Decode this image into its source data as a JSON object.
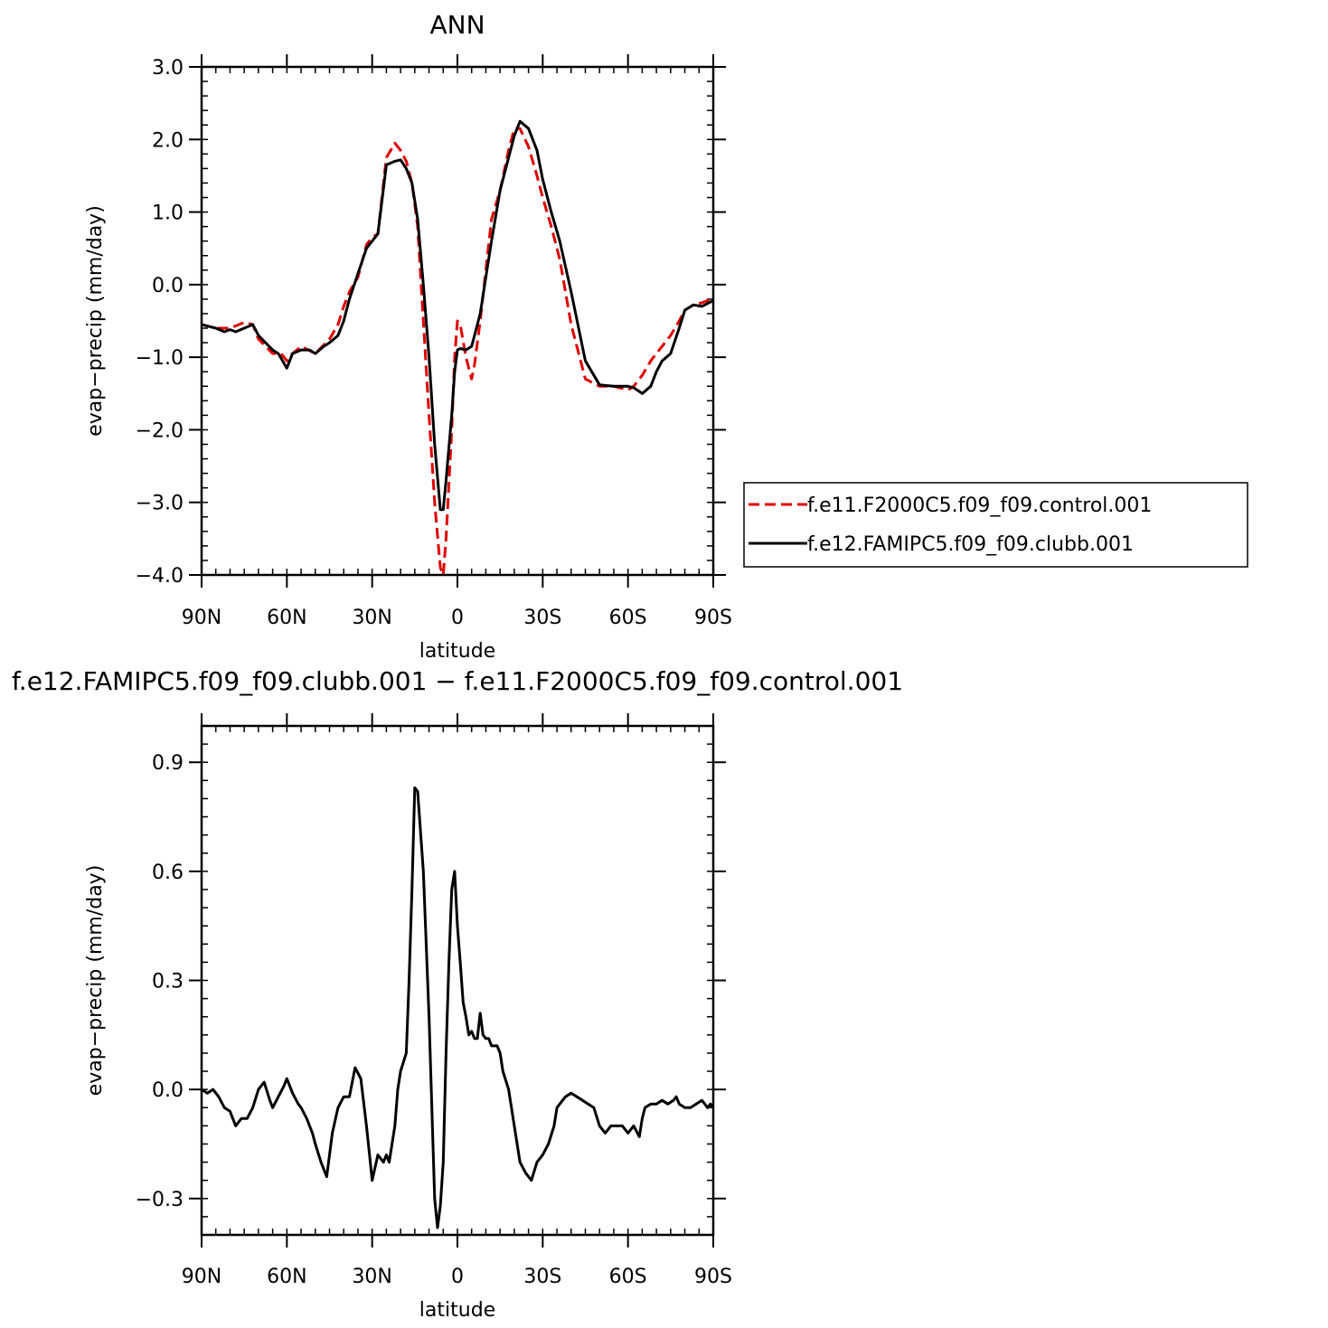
{
  "chart_data": [
    {
      "type": "line",
      "title": "ANN",
      "xlabel": "latitude",
      "ylabel": "evap−precip (mm/day)",
      "xlim": [
        90,
        -90
      ],
      "ylim": [
        -4.0,
        3.0
      ],
      "x_ticks": [
        90,
        60,
        30,
        0,
        -30,
        -60,
        -90
      ],
      "x_tick_labels": [
        "90N",
        "60N",
        "30N",
        "0",
        "30S",
        "60S",
        "90S"
      ],
      "y_ticks": [
        3.0,
        2.0,
        1.0,
        0.0,
        -1.0,
        -2.0,
        -3.0,
        -4.0
      ],
      "y_tick_labels": [
        "3.0",
        "2.0",
        "1.0",
        "0.0",
        "−1.0",
        "−2.0",
        "−3.0",
        "−4.0"
      ],
      "legend_position": "right",
      "series": [
        {
          "name": "f.e11.F2000C5.f09_f09.control.001",
          "color": "#e00000",
          "dash": "dashed",
          "x": [
            90,
            85,
            80,
            75,
            72,
            70,
            65,
            62,
            60,
            58,
            55,
            50,
            45,
            42,
            40,
            38,
            35,
            32,
            30,
            28,
            25,
            22,
            20,
            18,
            16,
            14,
            12,
            10,
            8,
            6,
            5,
            4,
            2,
            1,
            0,
            -1,
            -3,
            -5,
            -6,
            -8,
            -10,
            -12,
            -15,
            -18,
            -20,
            -22,
            -25,
            -28,
            -30,
            -33,
            -36,
            -40,
            -45,
            -50,
            -55,
            -60,
            -62,
            -65,
            -68,
            -70,
            -72,
            -75,
            -78,
            -80,
            -83,
            -86,
            -88,
            -90
          ],
          "y": [
            -0.55,
            -0.6,
            -0.6,
            -0.52,
            -0.55,
            -0.75,
            -0.95,
            -0.95,
            -1.05,
            -0.95,
            -0.85,
            -0.95,
            -0.75,
            -0.55,
            -0.3,
            -0.1,
            0.1,
            0.55,
            0.65,
            0.7,
            1.75,
            1.95,
            1.85,
            1.7,
            1.4,
            0.8,
            -0.5,
            -1.8,
            -3.0,
            -3.9,
            -4.0,
            -3.5,
            -2.0,
            -1.0,
            -0.5,
            -0.55,
            -1.0,
            -1.3,
            -1.1,
            -0.5,
            0.2,
            0.9,
            1.3,
            1.85,
            2.15,
            2.15,
            1.9,
            1.5,
            1.2,
            0.8,
            0.35,
            -0.55,
            -1.3,
            -1.4,
            -1.4,
            -1.45,
            -1.4,
            -1.25,
            -1.05,
            -0.95,
            -0.85,
            -0.7,
            -0.5,
            -0.35,
            -0.28,
            -0.25,
            -0.22,
            -0.2
          ]
        },
        {
          "name": "f.e12.FAMIPC5.f09_f09.clubb.001",
          "color": "#000000",
          "dash": "solid",
          "x": [
            90,
            87,
            85,
            82,
            80,
            78,
            75,
            72,
            70,
            65,
            63,
            60,
            58,
            55,
            52,
            50,
            47,
            45,
            42,
            40,
            38,
            35,
            32,
            30,
            28,
            25,
            22,
            20,
            18,
            16,
            14,
            12,
            10,
            8,
            6,
            5,
            4,
            2,
            1,
            0,
            -1,
            -3,
            -5,
            -6,
            -8,
            -10,
            -12,
            -15,
            -18,
            -20,
            -22,
            -25,
            -28,
            -30,
            -33,
            -36,
            -40,
            -45,
            -50,
            -55,
            -60,
            -62,
            -65,
            -68,
            -70,
            -72,
            -75,
            -78,
            -80,
            -83,
            -86,
            -88,
            -90
          ],
          "y": [
            -0.55,
            -0.58,
            -0.6,
            -0.65,
            -0.62,
            -0.65,
            -0.6,
            -0.55,
            -0.7,
            -0.9,
            -0.95,
            -1.15,
            -0.95,
            -0.9,
            -0.9,
            -0.95,
            -0.85,
            -0.8,
            -0.7,
            -0.5,
            -0.2,
            0.15,
            0.5,
            0.6,
            0.7,
            1.65,
            1.7,
            1.72,
            1.6,
            1.4,
            0.9,
            0.0,
            -1.0,
            -2.2,
            -3.1,
            -3.1,
            -2.7,
            -1.8,
            -1.2,
            -0.9,
            -0.88,
            -0.9,
            -0.85,
            -0.7,
            -0.4,
            0.1,
            0.6,
            1.3,
            1.75,
            2.05,
            2.25,
            2.15,
            1.85,
            1.45,
            1.0,
            0.6,
            -0.1,
            -1.05,
            -1.38,
            -1.4,
            -1.4,
            -1.42,
            -1.5,
            -1.4,
            -1.2,
            -1.05,
            -0.95,
            -0.6,
            -0.35,
            -0.28,
            -0.3,
            -0.26,
            -0.22
          ]
        }
      ]
    },
    {
      "type": "line",
      "title": "f.e12.FAMIPC5.f09_f09.clubb.001 − f.e11.F2000C5.f09_f09.control.001",
      "xlabel": "latitude",
      "ylabel": "evap−precip (mm/day)",
      "xlim": [
        90,
        -90
      ],
      "ylim": [
        -0.4,
        1.0
      ],
      "x_ticks": [
        90,
        60,
        30,
        0,
        -30,
        -60,
        -90
      ],
      "x_tick_labels": [
        "90N",
        "60N",
        "30N",
        "0",
        "30S",
        "60S",
        "90S"
      ],
      "y_ticks": [
        0.9,
        0.6,
        0.3,
        0.0,
        -0.3
      ],
      "y_tick_labels": [
        "0.9",
        "0.6",
        "0.3",
        "0.0",
        "−0.3"
      ],
      "series": [
        {
          "name": "",
          "color": "#000000",
          "dash": "solid",
          "x": [
            90,
            88,
            86,
            84,
            82,
            80,
            78,
            76,
            75,
            74,
            72,
            70,
            68,
            66,
            65,
            63,
            61,
            60,
            58,
            56,
            55,
            53,
            51,
            50,
            48,
            46,
            44,
            42,
            40,
            39,
            38,
            36,
            34,
            32,
            30,
            28,
            26,
            25,
            24,
            22,
            21,
            20,
            18,
            17,
            16,
            15,
            14,
            12,
            10,
            8,
            7,
            6,
            5,
            4,
            3,
            2,
            1,
            0,
            -1,
            -2,
            -3,
            -4,
            -5,
            -6,
            -7,
            -8,
            -9,
            -10,
            -11,
            -12,
            -13,
            -14,
            -15,
            -16,
            -18,
            -20,
            -22,
            -24,
            -26,
            -28,
            -30,
            -32,
            -34,
            -35,
            -36,
            -38,
            -40,
            -42,
            -44,
            -46,
            -48,
            -50,
            -52,
            -54,
            -56,
            -58,
            -60,
            -62,
            -64,
            -65,
            -66,
            -68,
            -70,
            -72,
            -74,
            -76,
            -77,
            -78,
            -80,
            -82,
            -84,
            -86,
            -87,
            -88,
            -89,
            -90
          ],
          "y": [
            0.0,
            -0.01,
            0.0,
            -0.02,
            -0.05,
            -0.06,
            -0.1,
            -0.08,
            -0.08,
            -0.08,
            -0.05,
            0.0,
            0.02,
            -0.03,
            -0.05,
            -0.02,
            0.01,
            0.03,
            -0.01,
            -0.04,
            -0.05,
            -0.08,
            -0.12,
            -0.15,
            -0.2,
            -0.24,
            -0.12,
            -0.05,
            -0.02,
            -0.02,
            -0.02,
            0.06,
            0.03,
            -0.1,
            -0.25,
            -0.18,
            -0.2,
            -0.18,
            -0.2,
            -0.1,
            0.0,
            0.05,
            0.1,
            0.3,
            0.55,
            0.83,
            0.82,
            0.6,
            0.2,
            -0.3,
            -0.38,
            -0.32,
            -0.2,
            0.1,
            0.35,
            0.55,
            0.6,
            0.45,
            0.35,
            0.24,
            0.2,
            0.15,
            0.16,
            0.14,
            0.14,
            0.21,
            0.15,
            0.14,
            0.14,
            0.12,
            0.12,
            0.12,
            0.1,
            0.05,
            0.0,
            -0.1,
            -0.2,
            -0.23,
            -0.25,
            -0.2,
            -0.18,
            -0.15,
            -0.1,
            -0.05,
            -0.04,
            -0.02,
            -0.01,
            -0.02,
            -0.03,
            -0.04,
            -0.05,
            -0.1,
            -0.12,
            -0.1,
            -0.1,
            -0.1,
            -0.12,
            -0.1,
            -0.13,
            -0.08,
            -0.05,
            -0.04,
            -0.04,
            -0.03,
            -0.04,
            -0.03,
            -0.02,
            -0.04,
            -0.05,
            -0.05,
            -0.04,
            -0.03,
            -0.04,
            -0.05,
            -0.04,
            -0.05
          ]
        }
      ]
    }
  ]
}
